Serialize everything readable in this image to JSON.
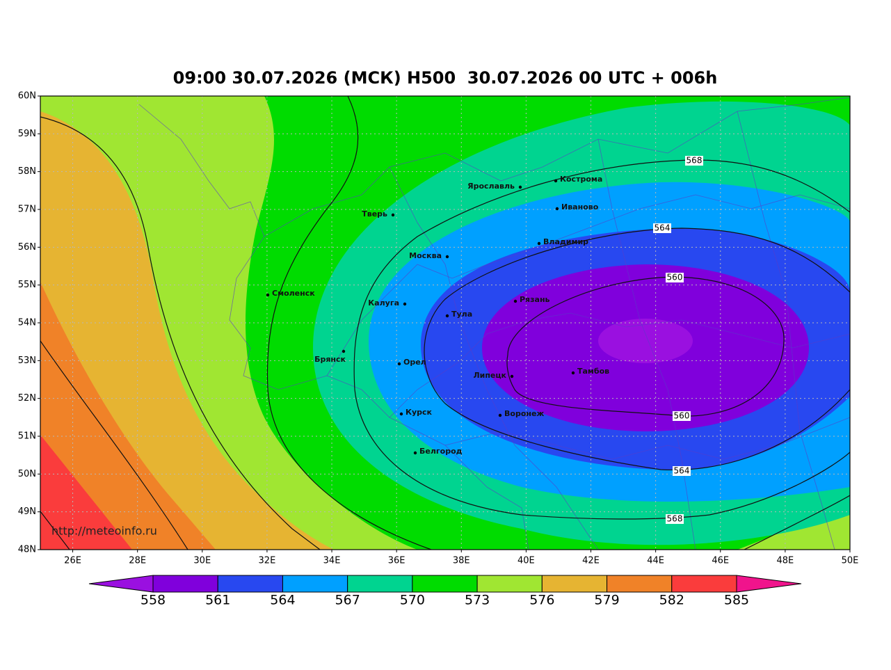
{
  "title": "09:00 30.07.2026 (МСК) H500  30.07.2026 00 UTC + 006h",
  "map": {
    "lon_ticks": [
      {
        "value": 26,
        "label": "26E"
      },
      {
        "value": 28,
        "label": "28E"
      },
      {
        "value": 30,
        "label": "30E"
      },
      {
        "value": 32,
        "label": "32E"
      },
      {
        "value": 34,
        "label": "34E"
      },
      {
        "value": 36,
        "label": "36E"
      },
      {
        "value": 38,
        "label": "38E"
      },
      {
        "value": 40,
        "label": "40E"
      },
      {
        "value": 42,
        "label": "42E"
      },
      {
        "value": 44,
        "label": "44E"
      },
      {
        "value": 46,
        "label": "46E"
      },
      {
        "value": 48,
        "label": "48E"
      },
      {
        "value": 50,
        "label": "50E"
      }
    ],
    "lat_ticks": [
      {
        "value": 60,
        "label": "60N"
      },
      {
        "value": 59,
        "label": "59N"
      },
      {
        "value": 58,
        "label": "58N"
      },
      {
        "value": 57,
        "label": "57N"
      },
      {
        "value": 56,
        "label": "56N"
      },
      {
        "value": 55,
        "label": "55N"
      },
      {
        "value": 54,
        "label": "54N"
      },
      {
        "value": 53,
        "label": "53N"
      },
      {
        "value": 52,
        "label": "52N"
      },
      {
        "value": 51,
        "label": "51N"
      },
      {
        "value": 50,
        "label": "50N"
      },
      {
        "value": 49,
        "label": "49N"
      },
      {
        "value": 48,
        "label": "48N"
      }
    ],
    "contour_labels": [
      568,
      564,
      560,
      560,
      564,
      568
    ],
    "cities": [
      "Ярославль",
      "Кострома",
      "Тверь",
      "Иваново",
      "Москва",
      "Владимир",
      "Смоленск",
      "Калуга",
      "Рязань",
      "Тула",
      "Брянск",
      "Орел",
      "Липецк",
      "Тамбов",
      "Курск",
      "Воронеж",
      "Белгород"
    ],
    "watermark": "http://meteoinfo.ru"
  },
  "colorbar": {
    "levels": [
      558,
      561,
      564,
      567,
      570,
      573,
      576,
      579,
      582,
      585
    ],
    "colors": [
      "#8000dc",
      "#2848f0",
      "#00a0ff",
      "#00d490",
      "#00dc00",
      "#a0e632",
      "#e6b432",
      "#f08228",
      "#fa3c3c"
    ],
    "under_color": "#9a10e0",
    "over_color": "#f0148c"
  }
}
